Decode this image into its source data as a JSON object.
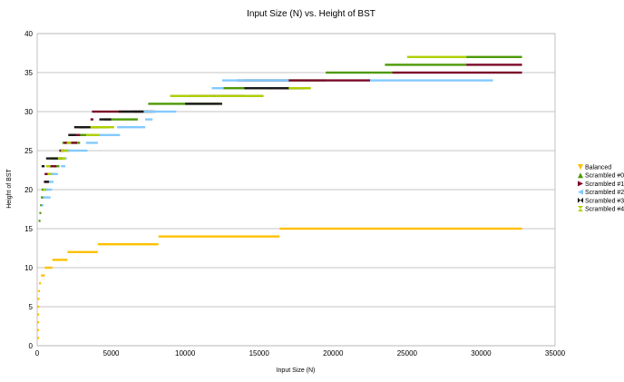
{
  "chart_data": {
    "type": "scatter",
    "title": "Input Size (N) vs. Height of BST",
    "xlabel": "Input Size (N)",
    "ylabel": "Height of BST",
    "xlim": [
      0,
      35000
    ],
    "ylim": [
      0,
      40
    ],
    "x_ticks": [
      0,
      5000,
      10000,
      15000,
      20000,
      25000,
      30000,
      35000
    ],
    "y_ticks": [
      0,
      5,
      10,
      15,
      20,
      25,
      30,
      35,
      40
    ],
    "grid": "horizontal",
    "legend_position": "right",
    "series": [
      {
        "name": "Balanced",
        "color": "#ffc000",
        "marker": "triangle-down",
        "segments": [
          {
            "y": 1,
            "x": [
              1,
              1
            ]
          },
          {
            "y": 2,
            "x": [
              2,
              3
            ]
          },
          {
            "y": 3,
            "x": [
              4,
              7
            ]
          },
          {
            "y": 4,
            "x": [
              8,
              15
            ]
          },
          {
            "y": 5,
            "x": [
              16,
              31
            ]
          },
          {
            "y": 6,
            "x": [
              32,
              63
            ]
          },
          {
            "y": 7,
            "x": [
              64,
              127
            ]
          },
          {
            "y": 8,
            "x": [
              128,
              255
            ]
          },
          {
            "y": 9,
            "x": [
              256,
              511
            ]
          },
          {
            "y": 10,
            "x": [
              512,
              1023
            ]
          },
          {
            "y": 11,
            "x": [
              1024,
              2047
            ]
          },
          {
            "y": 12,
            "x": [
              2048,
              4095
            ]
          },
          {
            "y": 13,
            "x": [
              4096,
              8191
            ]
          },
          {
            "y": 14,
            "x": [
              8192,
              16383
            ]
          },
          {
            "y": 15,
            "x": [
              16384,
              32767
            ]
          }
        ]
      },
      {
        "name": "Scrambled #0",
        "color": "#4e9a06",
        "marker": "triangle-up",
        "segments": [
          {
            "y": 16,
            "x": [
              100,
              150
            ]
          },
          {
            "y": 17,
            "x": [
              150,
              250
            ]
          },
          {
            "y": 18,
            "x": [
              200,
              350
            ]
          },
          {
            "y": 19,
            "x": [
              250,
              450
            ]
          },
          {
            "y": 20,
            "x": [
              300,
              700
            ]
          },
          {
            "y": 21,
            "x": [
              500,
              900
            ]
          },
          {
            "y": 22,
            "x": [
              600,
              1200
            ]
          },
          {
            "y": 23,
            "x": [
              800,
              1500
            ]
          },
          {
            "y": 24,
            "x": [
              900,
              1800
            ]
          },
          {
            "y": 25,
            "x": [
              1500,
              2200
            ]
          },
          {
            "y": 26,
            "x": [
              1700,
              2900
            ]
          },
          {
            "y": 27,
            "x": [
              2200,
              3500
            ]
          },
          {
            "y": 28,
            "x": [
              2900,
              4800
            ]
          },
          {
            "y": 29,
            "x": [
              4500,
              6800
            ]
          },
          {
            "y": 30,
            "x": [
              6500,
              7800
            ]
          },
          {
            "y": 31,
            "x": [
              7500,
              12300
            ]
          },
          {
            "y": 32,
            "x": [
              9000,
              15200
            ]
          },
          {
            "y": 33,
            "x": [
              12500,
              18300
            ]
          },
          {
            "y": 34,
            "x": [
              14000,
              19500
            ]
          },
          {
            "y": 35,
            "x": [
              19500,
              24000
            ]
          },
          {
            "y": 36,
            "x": [
              23500,
              29000
            ]
          },
          {
            "y": 37,
            "x": [
              29000,
              32767
            ]
          }
        ]
      },
      {
        "name": "Scrambled #1",
        "color": "#7b0a2a",
        "marker": "triangle-right",
        "segments": [
          {
            "y": 21,
            "x": [
              450,
              700
            ]
          },
          {
            "y": 22,
            "x": [
              500,
              900
            ]
          },
          {
            "y": 23,
            "x": [
              800,
              1300
            ]
          },
          {
            "y": 25,
            "x": [
              1500,
              1800
            ]
          },
          {
            "y": 26,
            "x": [
              1800,
              2700
            ]
          },
          {
            "y": 27,
            "x": [
              2200,
              2900
            ]
          },
          {
            "y": 28,
            "x": [
              2800,
              3300
            ]
          },
          {
            "y": 29,
            "x": [
              3600,
              3800
            ]
          },
          {
            "y": 30,
            "x": [
              3700,
              8000
            ]
          },
          {
            "y": 32,
            "x": [
              10000,
              14000
            ]
          },
          {
            "y": 33,
            "x": [
              15500,
              17500
            ]
          },
          {
            "y": 34,
            "x": [
              13500,
              22500
            ]
          },
          {
            "y": 35,
            "x": [
              24000,
              32767
            ]
          },
          {
            "y": 36,
            "x": [
              29000,
              32767
            ]
          }
        ]
      },
      {
        "name": "Scrambled #2",
        "color": "#83caff",
        "marker": "triangle-left",
        "segments": [
          {
            "y": 18,
            "x": [
              300,
              400
            ]
          },
          {
            "y": 19,
            "x": [
              400,
              900
            ]
          },
          {
            "y": 20,
            "x": [
              600,
              1000
            ]
          },
          {
            "y": 21,
            "x": [
              700,
              1100
            ]
          },
          {
            "y": 22,
            "x": [
              900,
              1400
            ]
          },
          {
            "y": 23,
            "x": [
              1600,
              1900
            ]
          },
          {
            "y": 24,
            "x": [
              1800,
              2000
            ]
          },
          {
            "y": 25,
            "x": [
              2000,
              3400
            ]
          },
          {
            "y": 26,
            "x": [
              3300,
              4100
            ]
          },
          {
            "y": 27,
            "x": [
              3500,
              5600
            ]
          },
          {
            "y": 28,
            "x": [
              5400,
              7300
            ]
          },
          {
            "y": 29,
            "x": [
              7300,
              7800
            ]
          },
          {
            "y": 30,
            "x": [
              7000,
              9400
            ]
          },
          {
            "y": 32,
            "x": [
              9700,
              10300
            ]
          },
          {
            "y": 33,
            "x": [
              11800,
              12600
            ]
          },
          {
            "y": 34,
            "x": [
              12500,
              17000
            ]
          },
          {
            "y": 34,
            "x": [
              22500,
              30800
            ]
          }
        ]
      },
      {
        "name": "Scrambled #3",
        "color": "#1a1a1a",
        "marker": "bowtie",
        "segments": [
          {
            "y": 21,
            "x": [
              500,
              800
            ]
          },
          {
            "y": 23,
            "x": [
              300,
              500
            ]
          },
          {
            "y": 24,
            "x": [
              600,
              1700
            ]
          },
          {
            "y": 27,
            "x": [
              2100,
              2600
            ]
          },
          {
            "y": 28,
            "x": [
              2500,
              4200
            ]
          },
          {
            "y": 29,
            "x": [
              4200,
              5000
            ]
          },
          {
            "y": 30,
            "x": [
              5500,
              7200
            ]
          },
          {
            "y": 31,
            "x": [
              10000,
              12500
            ]
          },
          {
            "y": 33,
            "x": [
              14000,
              18000
            ]
          }
        ]
      },
      {
        "name": "Scrambled #4",
        "color": "#aecf00",
        "marker": "hourglass",
        "segments": [
          {
            "y": 20,
            "x": [
              400,
              600
            ]
          },
          {
            "y": 22,
            "x": [
              700,
              1000
            ]
          },
          {
            "y": 23,
            "x": [
              600,
              900
            ]
          },
          {
            "y": 24,
            "x": [
              1400,
              1900
            ]
          },
          {
            "y": 25,
            "x": [
              1600,
              2100
            ]
          },
          {
            "y": 26,
            "x": [
              2000,
              2300
            ]
          },
          {
            "y": 27,
            "x": [
              3300,
              4200
            ]
          },
          {
            "y": 28,
            "x": [
              3600,
              5200
            ]
          },
          {
            "y": 32,
            "x": [
              9000,
              12000
            ]
          },
          {
            "y": 32,
            "x": [
              12000,
              15300
            ]
          },
          {
            "y": 33,
            "x": [
              17000,
              18500
            ]
          },
          {
            "y": 37,
            "x": [
              25000,
              29000
            ]
          }
        ]
      }
    ]
  }
}
